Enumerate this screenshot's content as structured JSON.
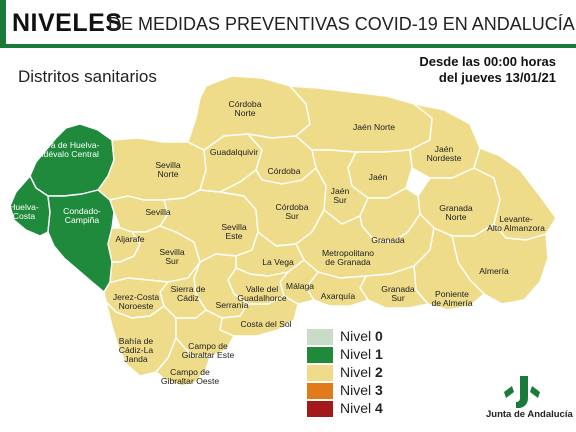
{
  "header": {
    "title_bold": "NIVELES",
    "title_rest": "DE MEDIDAS PREVENTIVAS COVID-19 EN ANDALUCÍA",
    "subtitle": "Distritos sanitarios",
    "date_line1": "Desde las 00:00 horas",
    "date_line2": "del jueves 13/01/21"
  },
  "colors": {
    "nivel_0": "#c9ddc6",
    "nivel_1": "#1f8a3c",
    "nivel_2": "#eedc8a",
    "nivel_3": "#e07a1a",
    "nivel_4": "#a31818",
    "brand_green": "#1a7a3a"
  },
  "legend": [
    {
      "label": "Nivel",
      "num": "0",
      "color": "#c9ddc6"
    },
    {
      "label": "Nivel",
      "num": "1",
      "color": "#1f8a3c"
    },
    {
      "label": "Nivel",
      "num": "2",
      "color": "#eedc8a"
    },
    {
      "label": "Nivel",
      "num": "3",
      "color": "#e07a1a"
    },
    {
      "label": "Nivel",
      "num": "4",
      "color": "#a31818"
    }
  ],
  "districts": {
    "sierra_huelva": {
      "line1": "Sierra de Huelva-",
      "line2": "Andévalo Central",
      "level": 1
    },
    "huelva_costa": {
      "line1": "Huelva-",
      "line2": "Costa",
      "level": 1
    },
    "condado_campina": {
      "line1": "Condado-",
      "line2": "Campiña",
      "level": 1
    },
    "sevilla_norte": {
      "line1": "Sevilla",
      "line2": "Norte",
      "level": 2
    },
    "sevilla": {
      "line1": "Sevilla",
      "line2": "",
      "level": 2
    },
    "aljarafe": {
      "line1": "Aljarafe",
      "line2": "",
      "level": 2
    },
    "sevilla_sur": {
      "line1": "Sevilla",
      "line2": "Sur",
      "level": 2
    },
    "sevilla_este": {
      "line1": "Sevilla",
      "line2": "Este",
      "level": 2
    },
    "cordoba_norte": {
      "line1": "Córdoba",
      "line2": "Norte",
      "level": 2
    },
    "guadalquivir": {
      "line1": "Guadalquivir",
      "line2": "",
      "level": 2
    },
    "cordoba": {
      "line1": "Córdoba",
      "line2": "",
      "level": 2
    },
    "cordoba_sur": {
      "line1": "Córdoba",
      "line2": "Sur",
      "level": 2
    },
    "jaen_norte": {
      "line1": "Jaén Norte",
      "line2": "",
      "level": 2
    },
    "jaen_nordeste": {
      "line1": "Jaén",
      "line2": "Nordeste",
      "level": 2
    },
    "jaen": {
      "line1": "Jaén",
      "line2": "",
      "level": 2
    },
    "jaen_sur": {
      "line1": "Jaén",
      "line2": "Sur",
      "level": 2
    },
    "granada_norte": {
      "line1": "Granada",
      "line2": "Norte",
      "level": 2
    },
    "levante": {
      "line1": "Levante-",
      "line2": "Alto Almanzora",
      "level": 2
    },
    "granada": {
      "line1": "Granada",
      "line2": "",
      "level": 2
    },
    "metropolitano_granada": {
      "line1": "Metropolitano",
      "line2": "de Granada",
      "level": 2
    },
    "almeria": {
      "line1": "Almería",
      "line2": "",
      "level": 2
    },
    "poniente_almeria": {
      "line1": "Poniente",
      "line2": "de Almería",
      "level": 2
    },
    "granada_sur": {
      "line1": "Granada",
      "line2": "Sur",
      "level": 2
    },
    "axarquia": {
      "line1": "Axarquía",
      "line2": "",
      "level": 2
    },
    "malaga": {
      "line1": "Málaga",
      "line2": "",
      "level": 2
    },
    "la_vega": {
      "line1": "La Vega",
      "line2": "",
      "level": 2
    },
    "valle_guadalhorce": {
      "line1": "Valle del",
      "line2": "Guadalhorce",
      "level": 2
    },
    "serrania": {
      "line1": "Serranía",
      "line2": "",
      "level": 2
    },
    "costa_del_sol": {
      "line1": "Costa del Sol",
      "line2": "",
      "level": 2
    },
    "sierra_cadiz": {
      "line1": "Sierra de",
      "line2": "Cádiz",
      "level": 2
    },
    "jerez_costa": {
      "line1": "Jerez-Costa",
      "line2": "Noroeste",
      "level": 2
    },
    "bahia_cadiz": {
      "line1": "Bahía de",
      "line2": "Cádiz-La",
      "line3": "Janda",
      "level": 2
    },
    "campo_gibraltar_este": {
      "line1": "Campo de",
      "line2": "Gibraltar Este",
      "level": 2
    },
    "campo_gibraltar_oeste": {
      "line1": "Campo de",
      "line2": "Gibraltar Oeste",
      "level": 2
    }
  },
  "logo": {
    "text": "Junta de Andalucía",
    "icon": "junta-andalucia-logo-icon"
  }
}
